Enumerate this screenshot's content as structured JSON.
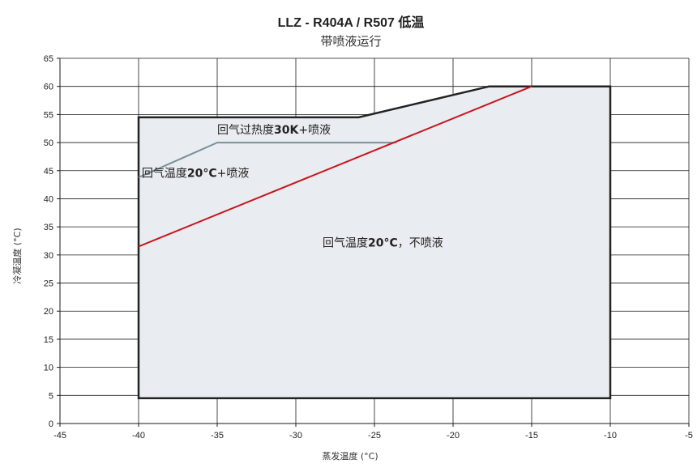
{
  "chart_data": {
    "type": "line",
    "title": "LLZ - R404A / R507 低温",
    "subtitle": "带喷液运行",
    "xlabel": "蒸发温度 (°C)",
    "ylabel": "冷凝温度 (°C)",
    "xlim": [
      -45,
      -5
    ],
    "ylim": [
      0,
      65
    ],
    "xticks": [
      -45,
      -40,
      -35,
      -30,
      -25,
      -20,
      -15,
      -10,
      -5
    ],
    "yticks": [
      0,
      5,
      10,
      15,
      20,
      25,
      30,
      35,
      40,
      45,
      50,
      55,
      60,
      65
    ],
    "grid": true,
    "series": [
      {
        "name": "envelope",
        "color": "#222222",
        "fill": "#e9edf1",
        "points": [
          [
            -40,
            4.5
          ],
          [
            -40,
            54.5
          ],
          [
            -26,
            54.5
          ],
          [
            -17.7,
            60
          ],
          [
            -10,
            60
          ],
          [
            -10,
            4.5
          ]
        ]
      },
      {
        "name": "回气温度20°C+喷液",
        "color": "#7a9098",
        "points": [
          [
            -40,
            43.8
          ],
          [
            -35,
            50
          ],
          [
            -23.6,
            50
          ]
        ]
      },
      {
        "name": "回气温度20°C，不喷液",
        "color": "#c8161d",
        "points": [
          [
            -40,
            31.5
          ],
          [
            -15,
            60
          ]
        ]
      }
    ],
    "annotations": [
      {
        "text_pre": "回气过热度",
        "text_bold": "30K",
        "text_post": "+喷液",
        "x": -35,
        "y": 51.6
      },
      {
        "text_pre": "回气温度",
        "text_bold": "20°C",
        "text_post": "+喷液",
        "x": -39.8,
        "y": 43.9
      },
      {
        "text_pre": "回气温度",
        "text_bold": "20°C",
        "text_post": "，不喷液",
        "x": -28.3,
        "y": 31.5
      }
    ]
  }
}
